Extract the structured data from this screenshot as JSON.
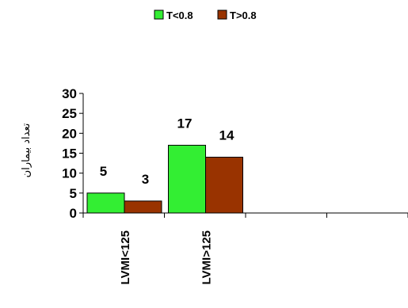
{
  "chart_data": {
    "type": "bar",
    "title": "",
    "xlabel": "",
    "ylabel": "تعداد بیماران",
    "categories": [
      "LVMI<125",
      "LVMI>125",
      "",
      ""
    ],
    "series": [
      {
        "name": "T<0.8",
        "color": "#33ee33",
        "values": [
          5,
          17,
          null,
          null
        ]
      },
      {
        "name": "T>0.8",
        "color": "#993300",
        "values": [
          3,
          14,
          null,
          null
        ]
      }
    ],
    "yticks": [
      0,
      5,
      10,
      15,
      20,
      25,
      30
    ],
    "ylim": [
      0,
      30
    ],
    "grid": false,
    "legend_position": "top-center",
    "show_data_labels": true
  }
}
